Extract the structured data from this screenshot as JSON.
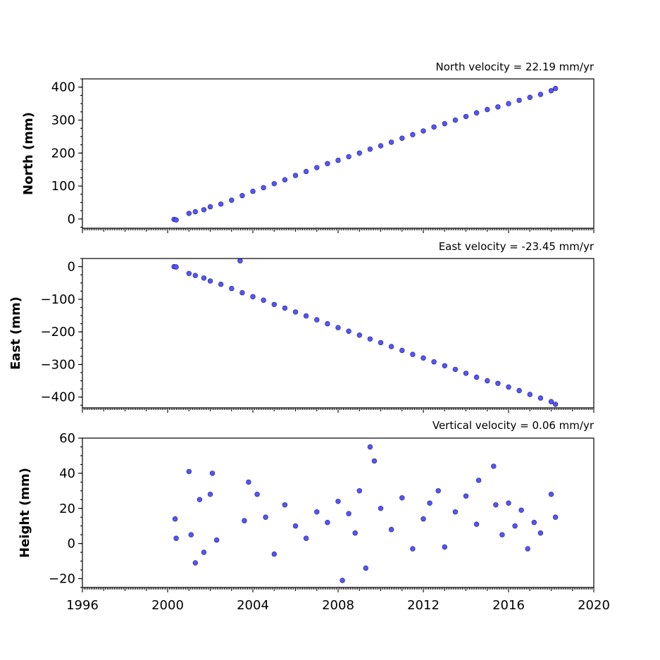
{
  "chart_data": [
    {
      "type": "scatter",
      "title": "North velocity = 22.19 mm/yr",
      "ylabel": "North (mm)",
      "xlim": [
        1996,
        2020
      ],
      "ylim": [
        -28,
        425
      ],
      "yticks": [
        0,
        100,
        200,
        300,
        400
      ],
      "ytick_labels": [
        "0",
        "100",
        "200",
        "300",
        "400"
      ],
      "point_color": "#5555ff",
      "series": [
        {
          "x": [
            2000.3,
            2000.4,
            2001.0,
            2001.3,
            2001.7,
            2002.0,
            2002.5,
            2003.0,
            2003.5,
            2004.0,
            2004.5,
            2005.0,
            2005.5,
            2006.0,
            2006.5,
            2007.0,
            2007.5,
            2008.0,
            2008.5,
            2009.0,
            2009.5,
            2010.0,
            2010.5,
            2011.0,
            2011.5,
            2012.0,
            2012.5,
            2013.0,
            2013.5,
            2014.0,
            2014.5,
            2015.0,
            2015.5,
            2016.0,
            2016.5,
            2017.0,
            2017.5,
            2018.0,
            2018.2
          ],
          "y": [
            -1,
            -3,
            17,
            22,
            28,
            37,
            45,
            57,
            71,
            84,
            95,
            107,
            119,
            132,
            144,
            156,
            168,
            178,
            189,
            200,
            212,
            222,
            233,
            245,
            256,
            267,
            279,
            289,
            300,
            311,
            322,
            332,
            340,
            350,
            360,
            369,
            378,
            389,
            396
          ]
        }
      ]
    },
    {
      "type": "scatter",
      "title": "East velocity = -23.45 mm/yr",
      "ylabel": "East (mm)",
      "xlim": [
        1996,
        2020
      ],
      "ylim": [
        -433,
        25
      ],
      "yticks": [
        0,
        -100,
        -200,
        -300,
        -400
      ],
      "ytick_labels": [
        "0",
        "−100",
        "−200",
        "−300",
        "−400"
      ],
      "point_color": "#5555ff",
      "series": [
        {
          "x": [
            2000.3,
            2000.4,
            2001.0,
            2001.3,
            2001.7,
            2002.0,
            2002.5,
            2003.0,
            2003.4,
            2003.5,
            2004.0,
            2004.5,
            2005.0,
            2005.5,
            2006.0,
            2006.5,
            2007.0,
            2007.5,
            2008.0,
            2008.5,
            2009.0,
            2009.5,
            2010.0,
            2010.5,
            2011.0,
            2011.5,
            2012.0,
            2012.5,
            2013.0,
            2013.5,
            2014.0,
            2014.5,
            2015.0,
            2015.5,
            2016.0,
            2016.5,
            2017.0,
            2017.5,
            2018.0,
            2018.2
          ],
          "y": [
            0,
            -1,
            -21,
            -27,
            -35,
            -44,
            -54,
            -67,
            18,
            -80,
            -92,
            -103,
            -116,
            -127,
            -139,
            -151,
            -163,
            -175,
            -187,
            -198,
            -210,
            -222,
            -233,
            -245,
            -257,
            -269,
            -280,
            -292,
            -304,
            -315,
            -327,
            -339,
            -350,
            -358,
            -369,
            -380,
            -392,
            -403,
            -414,
            -422
          ]
        }
      ]
    },
    {
      "type": "scatter",
      "title": "Vertical velocity = 0.06 mm/yr",
      "ylabel": "Height (mm)",
      "xlabel": "",
      "xlim": [
        1996,
        2020
      ],
      "ylim": [
        -25,
        60
      ],
      "yticks": [
        -20,
        0,
        20,
        40,
        60
      ],
      "ytick_labels": [
        "−20",
        "0",
        "20",
        "40",
        "60"
      ],
      "xticks": [
        1996,
        2000,
        2004,
        2008,
        2012,
        2016,
        2020
      ],
      "xtick_labels": [
        "1996",
        "2000",
        "2004",
        "2008",
        "2012",
        "2016",
        "2020"
      ],
      "point_color": "#5555ff",
      "series": [
        {
          "x": [
            2000.35,
            2000.4,
            2001.0,
            2001.1,
            2001.3,
            2001.5,
            2001.7,
            2002.0,
            2002.1,
            2002.3,
            2003.6,
            2003.8,
            2004.2,
            2004.6,
            2005.0,
            2005.5,
            2006.0,
            2006.5,
            2007.0,
            2007.5,
            2008.0,
            2008.2,
            2008.5,
            2008.8,
            2009.0,
            2009.3,
            2009.5,
            2009.7,
            2010.0,
            2010.5,
            2011.0,
            2011.5,
            2012.0,
            2012.3,
            2012.7,
            2013.0,
            2013.5,
            2014.0,
            2014.5,
            2014.6,
            2015.3,
            2015.4,
            2015.7,
            2016.0,
            2016.3,
            2016.6,
            2016.9,
            2017.2,
            2017.5,
            2018.0,
            2018.2
          ],
          "y": [
            14,
            3,
            41,
            5,
            -11,
            25,
            -5,
            28,
            40,
            2,
            13,
            35,
            28,
            15,
            -6,
            22,
            10,
            3,
            18,
            12,
            24,
            -21,
            17,
            6,
            30,
            -14,
            55,
            47,
            20,
            8,
            26,
            -3,
            14,
            23,
            30,
            -2,
            18,
            27,
            11,
            36,
            44,
            22,
            5,
            23,
            10,
            19,
            -3,
            12,
            6,
            28,
            15
          ]
        }
      ]
    }
  ]
}
